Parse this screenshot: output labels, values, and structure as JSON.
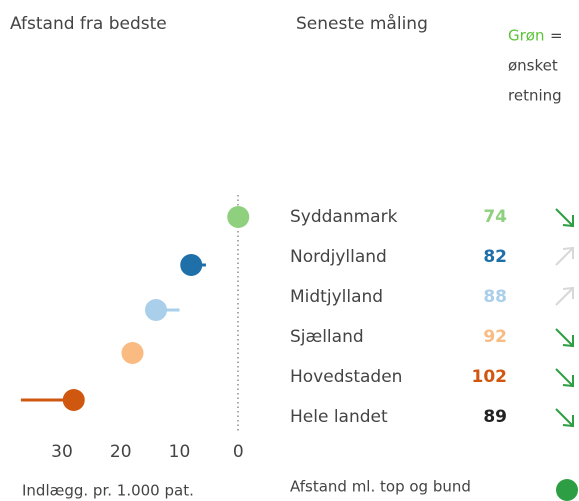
{
  "header": {
    "col1": "Afstand fra bedste",
    "col2": "Seneste måling",
    "legend_green": "Grøn",
    "legend_eq": "=",
    "legend_line2": "ønsket",
    "legend_line3": "retning",
    "legend_green_color": "#5cc33a"
  },
  "chart_data": {
    "type": "dot",
    "categories": [
      "Syddanmark",
      "Nordjylland",
      "Midtjylland",
      "Sjælland",
      "Hovedstaden",
      "Hele landet"
    ],
    "values": [
      0,
      8,
      14,
      18,
      28,
      null
    ],
    "previous": [
      null,
      5.5,
      10,
      null,
      37,
      null
    ],
    "colors": [
      "#8fd07f",
      "#1f6fa8",
      "#a9cfea",
      "#f9bb82",
      "#d0570f",
      "#222222"
    ],
    "xlim": [
      38,
      -2
    ],
    "xticks": [
      30,
      20,
      10,
      0
    ],
    "x_label": "Indlægg. pr. 1.000 pat."
  },
  "latest": {
    "values": [
      74,
      82,
      88,
      92,
      102,
      89
    ],
    "trend": [
      "down",
      "up",
      "up",
      "down",
      "down",
      "down"
    ],
    "trend_colors": {
      "down": "#2e9e44",
      "up": "#d8d8d8"
    }
  },
  "footer": {
    "legend_label": "Afstand ml. top og bund",
    "legend_color": "#2e9e44"
  }
}
